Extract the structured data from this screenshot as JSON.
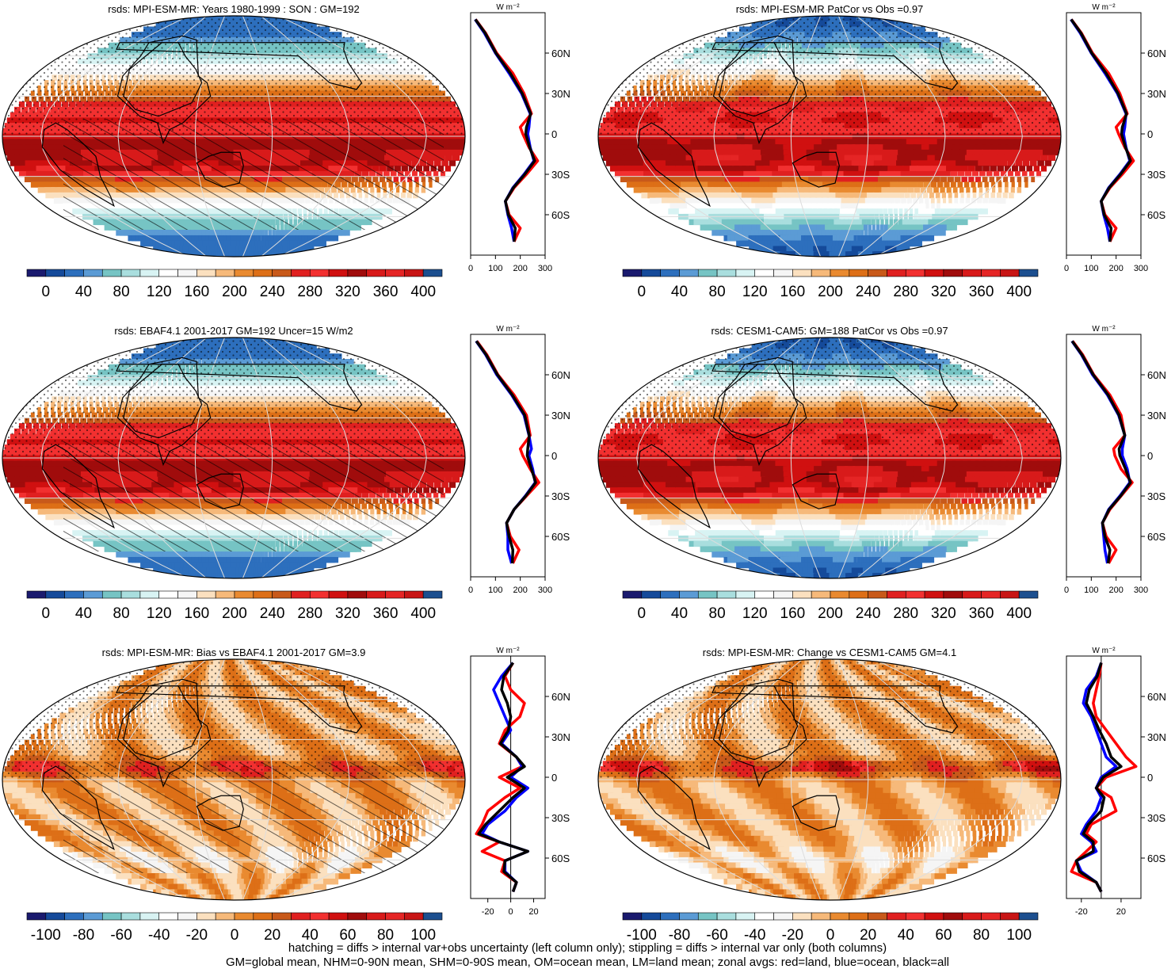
{
  "chart_data": [
    {
      "type": "map",
      "title": "rsds: MPI-ESM-MR: Years 1980-1999 : SON : GM=192",
      "colorbar": {
        "ticks": [
          "0",
          "40",
          "80",
          "120",
          "160",
          "200",
          "240",
          "280",
          "320",
          "360",
          "400"
        ],
        "min": -20,
        "max": 420
      },
      "zonal": {
        "unit": "W m⁻²",
        "xticks": [
          "0",
          "100",
          "200",
          "300"
        ],
        "xlim": [
          0,
          300
        ],
        "yticks": [
          "60N",
          "30N",
          "0",
          "30S",
          "60S"
        ],
        "ylim": [
          -90,
          90
        ],
        "series": [
          {
            "color": "#ff0000",
            "lat": [
              85,
              75,
              60,
              45,
              30,
              15,
              5,
              0,
              -10,
              -20,
              -30,
              -40,
              -50,
              -60,
              -70,
              -80
            ],
            "values": [
              20,
              60,
              105,
              170,
              215,
              245,
              200,
              210,
              235,
              270,
              225,
              175,
              140,
              155,
              200,
              175
            ]
          },
          {
            "color": "#0000ff",
            "lat": [
              85,
              75,
              60,
              45,
              30,
              15,
              5,
              0,
              -10,
              -20,
              -30,
              -40,
              -50,
              -60,
              -70,
              -80
            ],
            "values": [
              18,
              55,
              100,
              155,
              205,
              240,
              235,
              230,
              240,
              255,
              215,
              170,
              140,
              150,
              165,
              175
            ]
          },
          {
            "color": "#000000",
            "lat": [
              85,
              75,
              60,
              45,
              30,
              15,
              5,
              0,
              -10,
              -20,
              -30,
              -40,
              -50,
              -60,
              -70,
              -80
            ],
            "values": [
              19,
              58,
              102,
              160,
              208,
              242,
              225,
              222,
              238,
              258,
              218,
              172,
              140,
              152,
              180,
              175
            ]
          }
        ]
      }
    },
    {
      "type": "map",
      "title": "rsds: MPI-ESM-MR PatCor vs Obs =0.97",
      "colorbar": {
        "ticks": [
          "0",
          "40",
          "80",
          "120",
          "160",
          "200",
          "240",
          "280",
          "320",
          "360",
          "400"
        ],
        "min": -20,
        "max": 420
      },
      "zonal": {
        "unit": "W m⁻²",
        "xticks": [
          "0",
          "100",
          "200",
          "300"
        ],
        "xlim": [
          0,
          300
        ],
        "yticks": [
          "60N",
          "30N",
          "0",
          "30S",
          "60S"
        ],
        "ylim": [
          -90,
          90
        ],
        "series": [
          {
            "color": "#ff0000",
            "lat": [
              85,
              75,
              60,
              45,
              30,
              15,
              5,
              0,
              -10,
              -20,
              -30,
              -40,
              -50,
              -60,
              -70,
              -80
            ],
            "values": [
              20,
              60,
              105,
              170,
              215,
              245,
              200,
              210,
              235,
              270,
              225,
              175,
              140,
              155,
              200,
              175
            ]
          },
          {
            "color": "#0000ff",
            "lat": [
              85,
              75,
              60,
              45,
              30,
              15,
              5,
              0,
              -10,
              -20,
              -30,
              -40,
              -50,
              -60,
              -70,
              -80
            ],
            "values": [
              18,
              55,
              100,
              155,
              205,
              240,
              235,
              230,
              240,
              255,
              215,
              170,
              140,
              150,
              165,
              175
            ]
          },
          {
            "color": "#000000",
            "lat": [
              85,
              75,
              60,
              45,
              30,
              15,
              5,
              0,
              -10,
              -20,
              -30,
              -40,
              -50,
              -60,
              -70,
              -80
            ],
            "values": [
              19,
              58,
              102,
              160,
              208,
              242,
              225,
              222,
              238,
              258,
              218,
              172,
              140,
              152,
              180,
              175
            ]
          }
        ]
      }
    },
    {
      "type": "map",
      "title": "rsds: EBAF4.1 2001-2017 GM=192 Uncer=15 W/m2",
      "colorbar": {
        "ticks": [
          "0",
          "40",
          "80",
          "120",
          "160",
          "200",
          "240",
          "280",
          "320",
          "360",
          "400"
        ],
        "min": -20,
        "max": 420
      },
      "zonal": {
        "unit": "W m⁻²",
        "xticks": [
          "0",
          "100",
          "200",
          "300"
        ],
        "xlim": [
          0,
          300
        ],
        "yticks": [
          "60N",
          "30N",
          "0",
          "30S",
          "60S"
        ],
        "ylim": [
          -90,
          90
        ],
        "series": [
          {
            "color": "#ff0000",
            "lat": [
              85,
              75,
              60,
              45,
              30,
              15,
              5,
              0,
              -10,
              -20,
              -30,
              -40,
              -50,
              -60,
              -70,
              -80
            ],
            "values": [
              25,
              65,
              110,
              175,
              225,
              240,
              200,
              210,
              240,
              275,
              225,
              175,
              145,
              160,
              195,
              170
            ]
          },
          {
            "color": "#0000ff",
            "lat": [
              85,
              75,
              60,
              45,
              30,
              15,
              5,
              0,
              -10,
              -20,
              -30,
              -40,
              -50,
              -60,
              -70,
              -80
            ],
            "values": [
              22,
              60,
              105,
              165,
              215,
              235,
              245,
              235,
              250,
              260,
              220,
              175,
              145,
              150,
              150,
              165
            ]
          },
          {
            "color": "#000000",
            "lat": [
              85,
              75,
              60,
              45,
              30,
              15,
              5,
              0,
              -10,
              -20,
              -30,
              -40,
              -50,
              -60,
              -70,
              -80
            ],
            "values": [
              23,
              62,
              108,
              168,
              218,
              236,
              230,
              228,
              245,
              262,
              222,
              175,
              145,
              155,
              170,
              168
            ]
          }
        ]
      }
    },
    {
      "type": "map",
      "title": "rsds: CESM1-CAM5: GM=188 PatCor vs Obs =0.97",
      "colorbar": {
        "ticks": [
          "0",
          "40",
          "80",
          "120",
          "160",
          "200",
          "240",
          "280",
          "320",
          "360",
          "400"
        ],
        "min": -20,
        "max": 420
      },
      "zonal": {
        "unit": "W m⁻²",
        "xticks": [
          "0",
          "100",
          "200",
          "300"
        ],
        "xlim": [
          0,
          300
        ],
        "yticks": [
          "60N",
          "30N",
          "0",
          "30S",
          "60S"
        ],
        "ylim": [
          -90,
          90
        ],
        "series": [
          {
            "color": "#ff0000",
            "lat": [
              85,
              75,
              60,
              45,
              30,
              15,
              5,
              0,
              -10,
              -20,
              -30,
              -40,
              -50,
              -60,
              -70,
              -80
            ],
            "values": [
              25,
              65,
              110,
              175,
              220,
              235,
              190,
              195,
              220,
              265,
              220,
              175,
              145,
              160,
              200,
              170
            ]
          },
          {
            "color": "#0000ff",
            "lat": [
              85,
              75,
              60,
              45,
              30,
              15,
              5,
              0,
              -10,
              -20,
              -30,
              -40,
              -50,
              -60,
              -70,
              -80
            ],
            "values": [
              22,
              60,
              105,
              165,
              210,
              235,
              225,
              225,
              245,
              255,
              215,
              170,
              145,
              150,
              155,
              165
            ]
          },
          {
            "color": "#000000",
            "lat": [
              85,
              75,
              60,
              45,
              30,
              15,
              5,
              0,
              -10,
              -20,
              -30,
              -40,
              -50,
              -60,
              -70,
              -80
            ],
            "values": [
              23,
              62,
              108,
              168,
              212,
              235,
              212,
              215,
              238,
              258,
              218,
              172,
              145,
              155,
              175,
              168
            ]
          }
        ]
      }
    },
    {
      "type": "map",
      "title": "rsds: MPI-ESM-MR: Bias vs EBAF4.1 2001-2017  GM=3.9",
      "colorbar": {
        "ticks": [
          "-100",
          "-80",
          "-60",
          "-40",
          "-20",
          "0",
          "20",
          "40",
          "60",
          "80",
          "100"
        ],
        "min": -110,
        "max": 110
      },
      "zonal": {
        "unit": "W m⁻²",
        "xticks": [
          "-20",
          "0",
          "20"
        ],
        "xlim": [
          -35,
          30
        ],
        "yticks": [
          "60N",
          "30N",
          "0",
          "30S",
          "60S"
        ],
        "ylim": [
          -90,
          90
        ],
        "series": [
          {
            "color": "#ff0000",
            "lat": [
              85,
              75,
              65,
              55,
              45,
              35,
              25,
              15,
              8,
              0,
              -8,
              -15,
              -25,
              -35,
              -42,
              -48,
              -55,
              -62,
              -70,
              -78,
              -85
            ],
            "values": [
              2,
              -5,
              0,
              12,
              8,
              -5,
              -10,
              5,
              10,
              -10,
              8,
              -5,
              -20,
              -25,
              -30,
              -10,
              -25,
              -5,
              -8,
              5,
              2
            ]
          },
          {
            "color": "#0000ff",
            "lat": [
              85,
              75,
              65,
              55,
              45,
              35,
              25,
              15,
              8,
              0,
              -8,
              -15,
              -25,
              -35,
              -42,
              -48,
              -55,
              -62,
              -70,
              -78,
              -85
            ],
            "values": [
              2,
              -8,
              -15,
              -10,
              -5,
              0,
              -8,
              5,
              10,
              0,
              15,
              5,
              -5,
              -20,
              -25,
              -10,
              15,
              -5,
              -5,
              5,
              2
            ]
          },
          {
            "color": "#000000",
            "lat": [
              85,
              75,
              65,
              55,
              45,
              35,
              25,
              15,
              8,
              0,
              -8,
              -15,
              -25,
              -35,
              -42,
              -48,
              -55,
              -62,
              -70,
              -78,
              -85
            ],
            "values": [
              2,
              -6,
              -8,
              -3,
              0,
              -2,
              -9,
              5,
              12,
              -3,
              12,
              2,
              -10,
              -22,
              -28,
              -10,
              15,
              -5,
              -6,
              5,
              2
            ]
          }
        ]
      }
    },
    {
      "type": "map",
      "title": "rsds: MPI-ESM-MR: Change vs CESM1-CAM5 GM=4.1",
      "colorbar": {
        "ticks": [
          "-100",
          "-80",
          "-60",
          "-40",
          "-20",
          "0",
          "20",
          "40",
          "60",
          "80",
          "100"
        ],
        "min": -110,
        "max": 110
      },
      "zonal": {
        "unit": "W m⁻²",
        "xticks": [
          "-20",
          "20"
        ],
        "xlim": [
          -35,
          40
        ],
        "yticks": [
          "60N",
          "30N",
          "0",
          "30S",
          "60S"
        ],
        "ylim": [
          -90,
          90
        ],
        "series": [
          {
            "color": "#ff0000",
            "lat": [
              85,
              75,
              65,
              55,
              45,
              35,
              25,
              15,
              8,
              0,
              -8,
              -15,
              -25,
              -35,
              -42,
              -48,
              -55,
              -62,
              -70,
              -78,
              -85
            ],
            "values": [
              0,
              -2,
              -5,
              -8,
              -5,
              5,
              15,
              25,
              35,
              5,
              -5,
              10,
              15,
              -10,
              -15,
              -5,
              -15,
              -25,
              -30,
              -5,
              0
            ]
          },
          {
            "color": "#0000ff",
            "lat": [
              85,
              75,
              65,
              55,
              45,
              35,
              25,
              15,
              8,
              0,
              -8,
              -15,
              -25,
              -35,
              -42,
              -48,
              -55,
              -62,
              -70,
              -78,
              -85
            ],
            "values": [
              0,
              -5,
              -15,
              -18,
              -10,
              -5,
              0,
              5,
              15,
              0,
              -5,
              0,
              -5,
              -15,
              -20,
              -10,
              -5,
              -25,
              -20,
              -5,
              0
            ]
          },
          {
            "color": "#000000",
            "lat": [
              85,
              75,
              65,
              55,
              45,
              35,
              25,
              15,
              8,
              0,
              -8,
              -15,
              -25,
              -35,
              -42,
              -48,
              -55,
              -62,
              -70,
              -78,
              -85
            ],
            "values": [
              0,
              -4,
              -12,
              -15,
              -8,
              -2,
              5,
              10,
              20,
              2,
              -5,
              3,
              0,
              -13,
              -18,
              -8,
              -8,
              -25,
              -22,
              -5,
              0
            ]
          }
        ]
      }
    }
  ],
  "colors": {
    "abs_palette": [
      "#1a1a6e",
      "#154a9a",
      "#2d6fbd",
      "#5b9bd5",
      "#76c4c4",
      "#a9dede",
      "#d8f3f3",
      "#ffffff",
      "#f5f5f5",
      "#fbe0bf",
      "#f6b97a",
      "#e98a30",
      "#dd6f17",
      "#c8591a",
      "#e02020",
      "#f23030",
      "#d01010",
      "#a00c0c",
      "#d81a1a",
      "#e52525",
      "#c81515",
      "#1c4f8f"
    ],
    "diff_palette": [
      "#1a1a6e",
      "#154a9a",
      "#2d6fbd",
      "#5b9bd5",
      "#76c4c4",
      "#a9dede",
      "#d8f3f3",
      "#ffffff",
      "#f5f5f5",
      "#fbe0bf",
      "#f6b97a",
      "#e98a30",
      "#dd6f17",
      "#c8591a",
      "#e02020",
      "#f23030",
      "#d01010",
      "#a00c0c",
      "#d81a1a",
      "#e52525",
      "#c81515",
      "#1c4f8f"
    ],
    "land": "#000000"
  },
  "footer": {
    "line1": "hatching = diffs > internal var+obs uncertainty (left column only); stippling = diffs > internal var only (both columns)",
    "line2": "GM=global mean, NHM=0-90N mean, SHM=0-90S mean, OM=ocean mean, LM=land mean; zonal avgs: red=land, blue=ocean, black=all"
  }
}
